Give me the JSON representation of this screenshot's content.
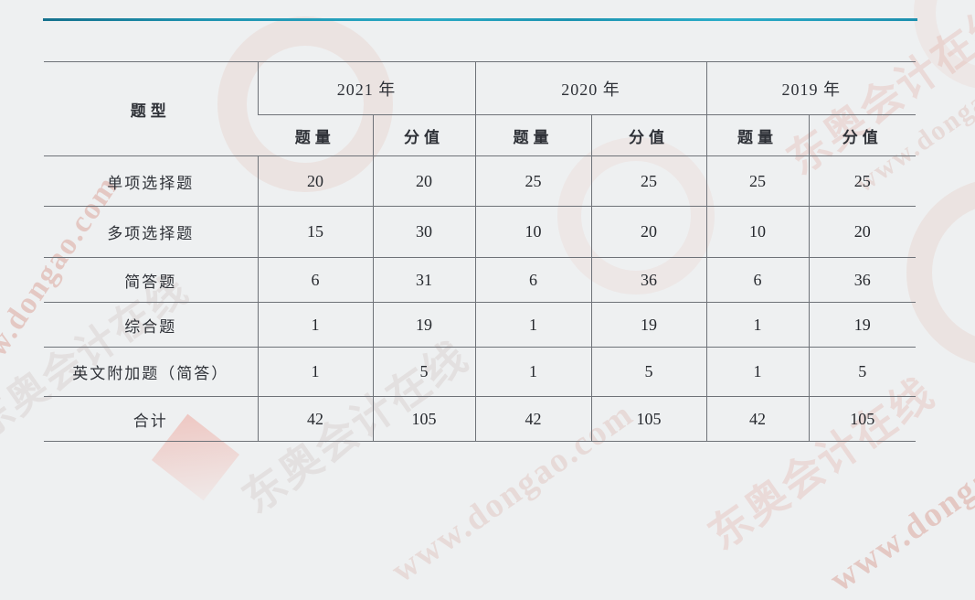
{
  "page": {
    "background_color": "#eef0f1",
    "accent_line_color": "#2aa9c4",
    "table_border_color": "#6e7278"
  },
  "table": {
    "corner_header": "题型",
    "year_headers": [
      "2021 年",
      "2020 年",
      "2019 年"
    ],
    "sub_headers": [
      "题量",
      "分值"
    ],
    "rows": [
      {
        "label": "单项选择题",
        "values": [
          "20",
          "20",
          "25",
          "25",
          "25",
          "25"
        ]
      },
      {
        "label": "多项选择题",
        "values": [
          "15",
          "30",
          "10",
          "20",
          "10",
          "20"
        ]
      },
      {
        "label": "简答题",
        "values": [
          "6",
          "31",
          "6",
          "36",
          "6",
          "36"
        ]
      },
      {
        "label": "综合题",
        "values": [
          "1",
          "19",
          "1",
          "19",
          "1",
          "19"
        ]
      },
      {
        "label": "英文附加题（简答）",
        "values": [
          "1",
          "5",
          "1",
          "5",
          "1",
          "5"
        ]
      },
      {
        "label": "合计",
        "values": [
          "42",
          "105",
          "42",
          "105",
          "42",
          "105"
        ]
      }
    ]
  },
  "watermark": {
    "site_text": "www.dongao.com",
    "brand_text": "东奥会计在线"
  }
}
